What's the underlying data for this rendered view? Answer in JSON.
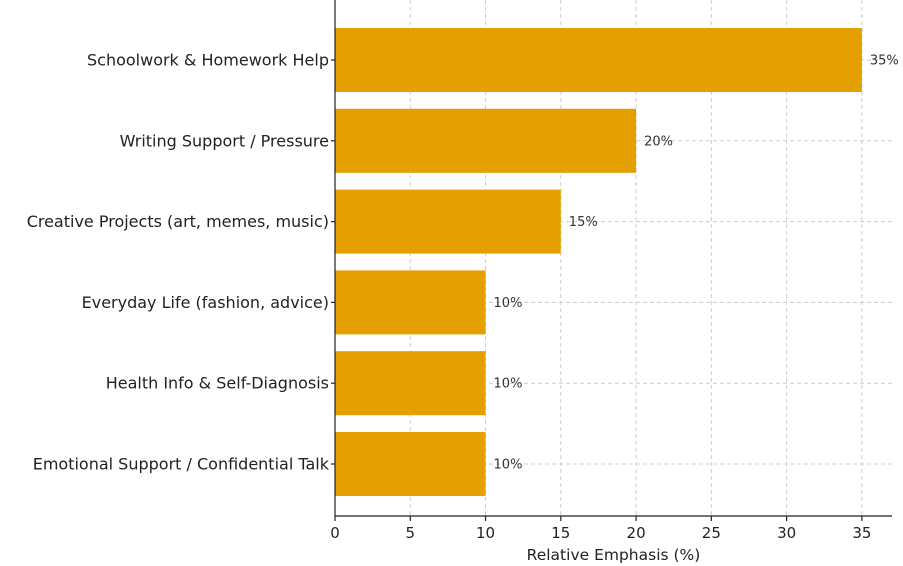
{
  "chart_data": {
    "type": "bar",
    "orientation": "horizontal",
    "title": "",
    "xlabel": "Relative Emphasis (%)",
    "ylabel": "",
    "xlim": [
      0,
      37
    ],
    "xticks": [
      0,
      5,
      10,
      15,
      20,
      25,
      30,
      35
    ],
    "grid": true,
    "bar_color": "#E3A000",
    "categories": [
      "Schoolwork & Homework Help",
      "Writing Support / Pressure",
      "Creative Projects (art, memes, music)",
      "Everyday Life (fashion, advice)",
      "Health Info & Self-Diagnosis",
      "Emotional Support / Confidential Talk"
    ],
    "values": [
      35,
      20,
      15,
      10,
      10,
      10
    ],
    "data_labels": [
      "35%",
      "20%",
      "15%",
      "10%",
      "10%",
      "10%"
    ]
  }
}
